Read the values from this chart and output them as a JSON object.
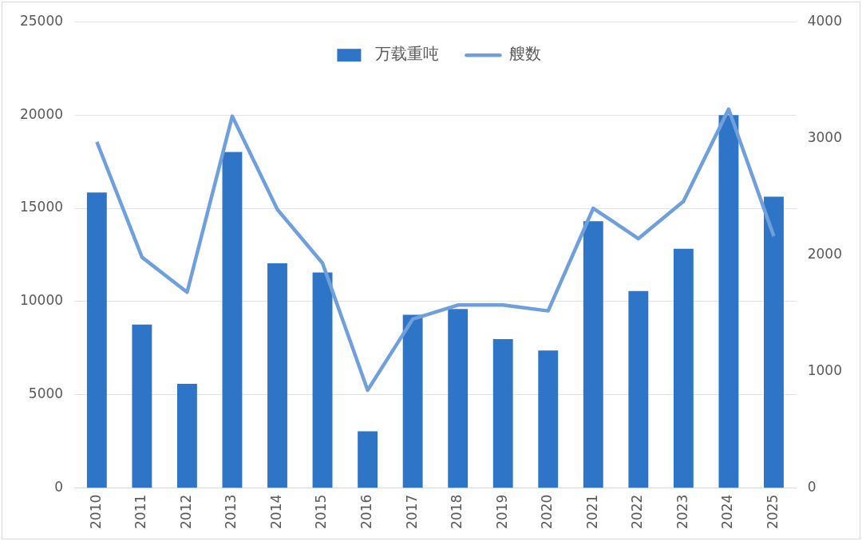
{
  "chart_data": {
    "type": "bar",
    "categories": [
      "2010",
      "2011",
      "2012",
      "2013",
      "2014",
      "2015",
      "2016",
      "2017",
      "2018",
      "2019",
      "2020",
      "2021",
      "2022",
      "2023",
      "2024",
      "2025"
    ],
    "series": [
      {
        "name": "万载重吨",
        "color": "#2e75c8",
        "values": [
          15850,
          8770,
          5590,
          18020,
          12050,
          11560,
          3050,
          9290,
          9600,
          7990,
          7380,
          14310,
          10560,
          12830,
          19990,
          15620
        ]
      },
      {
        "name": "艘数",
        "type": "line",
        "axis": "y2",
        "color": "#6fa0dc",
        "values": [
          2970,
          1980,
          1680,
          3190,
          2390,
          1930,
          840,
          1450,
          1570,
          1570,
          1520,
          2400,
          2140,
          2460,
          3250,
          2160
        ]
      }
    ],
    "ylim": [
      0,
      25000
    ],
    "yticks": [
      0,
      5000,
      10000,
      15000,
      20000,
      25000
    ],
    "y2lim": [
      0,
      4000
    ],
    "y2ticks": [
      0,
      1000,
      2000,
      3000,
      4000
    ],
    "grid": "y",
    "legend": "top",
    "marker": "none"
  }
}
